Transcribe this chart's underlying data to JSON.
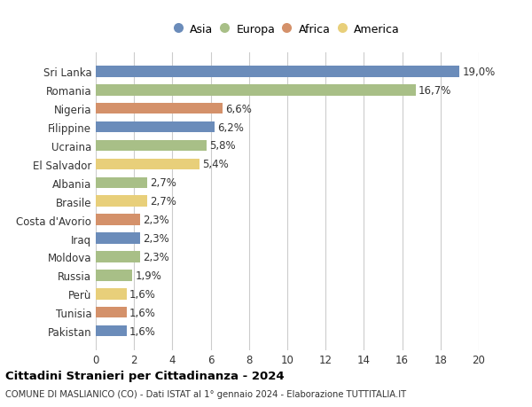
{
  "categories": [
    "Pakistan",
    "Tunisia",
    "Perù",
    "Russia",
    "Moldova",
    "Iraq",
    "Costa d'Avorio",
    "Brasile",
    "Albania",
    "El Salvador",
    "Ucraina",
    "Filippine",
    "Nigeria",
    "Romania",
    "Sri Lanka"
  ],
  "values": [
    1.6,
    1.6,
    1.6,
    1.9,
    2.3,
    2.3,
    2.3,
    2.7,
    2.7,
    5.4,
    5.8,
    6.2,
    6.6,
    16.7,
    19.0
  ],
  "labels": [
    "1,6%",
    "1,6%",
    "1,6%",
    "1,9%",
    "2,3%",
    "2,3%",
    "2,3%",
    "2,7%",
    "2,7%",
    "5,4%",
    "5,8%",
    "6,2%",
    "6,6%",
    "16,7%",
    "19,0%"
  ],
  "continents": [
    "Asia",
    "Africa",
    "America",
    "Europa",
    "Europa",
    "Asia",
    "Africa",
    "America",
    "Europa",
    "America",
    "Europa",
    "Asia",
    "Africa",
    "Europa",
    "Asia"
  ],
  "continent_colors": {
    "Asia": "#6b8cba",
    "Europa": "#a8bf87",
    "Africa": "#d4916a",
    "America": "#e8cf7a"
  },
  "legend_order": [
    "Asia",
    "Europa",
    "Africa",
    "America"
  ],
  "title": "Cittadini Stranieri per Cittadinanza - 2024",
  "subtitle": "COMUNE DI MASLIANICO (CO) - Dati ISTAT al 1° gennaio 2024 - Elaborazione TUTTITALIA.IT",
  "xlim": [
    0,
    20
  ],
  "xticks": [
    0,
    2,
    4,
    6,
    8,
    10,
    12,
    14,
    16,
    18,
    20
  ],
  "background_color": "#ffffff",
  "grid_color": "#cccccc"
}
